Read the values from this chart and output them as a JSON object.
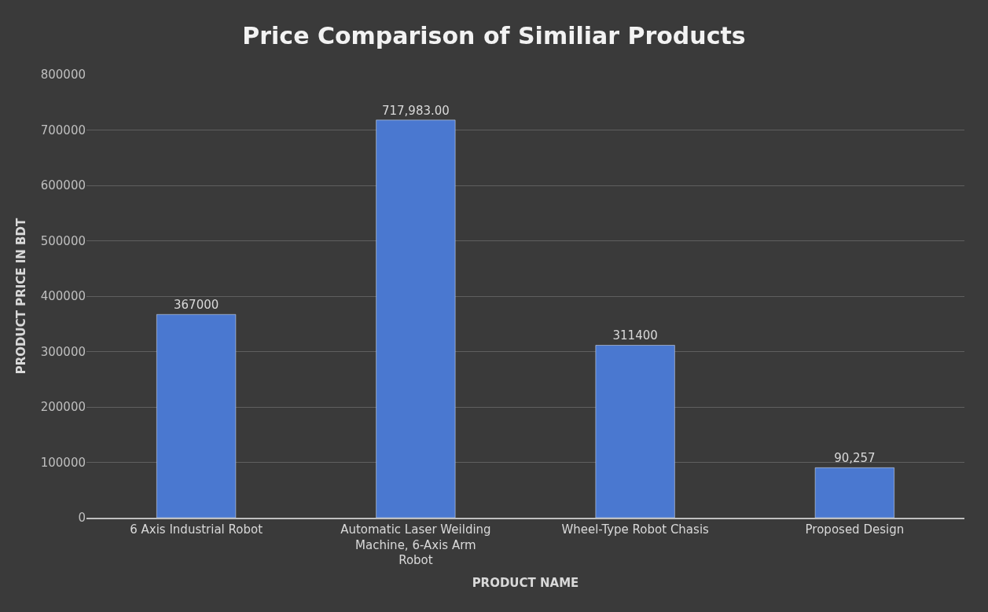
{
  "chart_data": {
    "type": "bar",
    "title": "Price Comparison of Similiar Products",
    "xlabel": "PRODUCT NAME",
    "ylabel": "PRODUCT PRICE IN BDT",
    "categories": [
      "6 Axis Industrial Robot",
      "Automatic Laser Weilding Machine, 6-Axis Arm Robot",
      "Wheel-Type Robot Chasis",
      "Proposed Design"
    ],
    "values": [
      367000,
      717983,
      311400,
      90257
    ],
    "value_labels": [
      "367000",
      "717,983.00",
      "311400",
      "90,257"
    ],
    "color": "#4a78d0",
    "ylim": [
      0,
      800000
    ],
    "yticks": [
      0,
      100000,
      200000,
      300000,
      400000,
      500000,
      600000,
      700000,
      800000
    ],
    "grid": "y",
    "legend": false
  }
}
